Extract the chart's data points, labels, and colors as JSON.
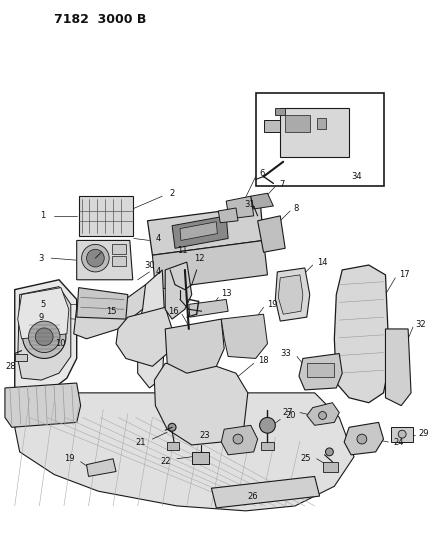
{
  "title": "7182  3000 B",
  "background_color": "#ffffff",
  "figsize": [
    4.28,
    5.33
  ],
  "dpi": 100,
  "title_fontsize": 9,
  "title_fontweight": "bold",
  "line_color": "#1a1a1a",
  "label_color": "#111111",
  "label_fontsize": 6.0,
  "image_path": null
}
